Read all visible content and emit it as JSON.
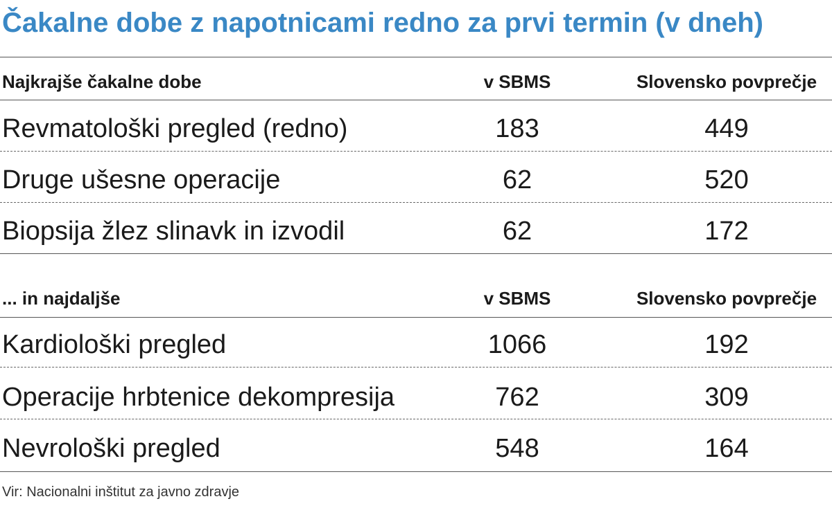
{
  "chart_data": {
    "type": "table",
    "title": "Čakalne dobe z napotnicami redno za prvi termin (v dneh)",
    "source": "Vir: Nacionalni inštitut za javno zdravje",
    "sections": [
      {
        "header": "Najkrajše čakalne dobe",
        "col_sbms": "v SBMS",
        "col_avg": "Slovensko povprečje",
        "rows": [
          {
            "label": "Revmatološki pregled (redno)",
            "sbms": 183,
            "avg": 449
          },
          {
            "label": "Druge ušesne operacije",
            "sbms": 62,
            "avg": 520
          },
          {
            "label": "Biopsija žlez slinavk in izvodil",
            "sbms": 62,
            "avg": 172
          }
        ]
      },
      {
        "header": "... in najdaljše",
        "col_sbms": "v SBMS",
        "col_avg": "Slovensko povprečje",
        "rows": [
          {
            "label": "Kardiološki pregled",
            "sbms": 1066,
            "avg": 192
          },
          {
            "label": "Operacije hrbtenice  dekompresija",
            "sbms": 762,
            "avg": 309
          },
          {
            "label": "Nevrološki  pregled",
            "sbms": 548,
            "avg": 164
          }
        ]
      }
    ]
  }
}
